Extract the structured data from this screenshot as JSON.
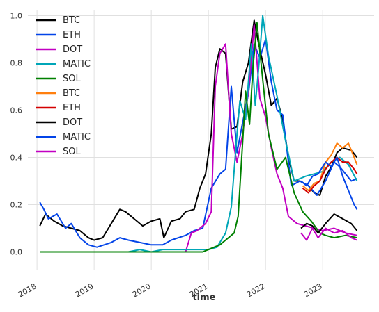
{
  "chart_data": {
    "type": "line",
    "xlabel": "time",
    "ylabel": "",
    "xlim": [
      2017.84,
      2023.9
    ],
    "ylim": [
      -0.075,
      1.025
    ],
    "x_ticks": [
      {
        "value": 2018,
        "label": "2018"
      },
      {
        "value": 2019,
        "label": "2019"
      },
      {
        "value": 2020,
        "label": "2020"
      },
      {
        "value": 2021,
        "label": "2021"
      },
      {
        "value": 2022,
        "label": "2022"
      },
      {
        "value": 2023,
        "label": "2023"
      }
    ],
    "y_ticks": [
      {
        "value": 0.0,
        "label": "0.0"
      },
      {
        "value": 0.2,
        "label": "0.2"
      },
      {
        "value": 0.4,
        "label": "0.4"
      },
      {
        "value": 0.6,
        "label": "0.6"
      },
      {
        "value": 0.8,
        "label": "0.8"
      },
      {
        "value": 1.0,
        "label": "1.0"
      }
    ],
    "grid": true,
    "legend_position": "top-left",
    "series": [
      {
        "name": "BTC",
        "color": "#000000",
        "x": [
          2018.05,
          2018.15,
          2018.3,
          2018.45,
          2018.6,
          2018.75,
          2018.9,
          2019.0,
          2019.15,
          2019.3,
          2019.45,
          2019.55,
          2019.7,
          2019.85,
          2020.0,
          2020.15,
          2020.22,
          2020.35,
          2020.5,
          2020.6,
          2020.75,
          2020.85,
          2020.95,
          2021.05,
          2021.12,
          2021.2,
          2021.3,
          2021.4,
          2021.5,
          2021.6,
          2021.7,
          2021.8,
          2021.88,
          2022.0,
          2022.1,
          2022.2,
          2022.3,
          2022.4,
          2022.5,
          2022.6,
          2022.75,
          2022.85,
          2022.95,
          2023.05,
          2023.15,
          2023.25,
          2023.35,
          2023.5,
          2023.6
        ],
        "y": [
          0.11,
          0.16,
          0.13,
          0.11,
          0.1,
          0.09,
          0.06,
          0.05,
          0.06,
          0.12,
          0.18,
          0.17,
          0.14,
          0.11,
          0.13,
          0.14,
          0.06,
          0.13,
          0.14,
          0.17,
          0.18,
          0.27,
          0.33,
          0.5,
          0.78,
          0.86,
          0.84,
          0.52,
          0.53,
          0.72,
          0.8,
          0.98,
          0.88,
          0.75,
          0.62,
          0.65,
          0.56,
          0.4,
          0.3,
          0.3,
          0.28,
          0.25,
          0.24,
          0.32,
          0.36,
          0.42,
          0.44,
          0.43,
          0.4
        ]
      },
      {
        "name": "ETH",
        "color": "#0344e8",
        "x": [
          2018.05,
          2018.12,
          2018.2,
          2018.35,
          2018.5,
          2018.6,
          2018.75,
          2018.9,
          2019.05,
          2019.3,
          2019.45,
          2019.6,
          2019.8,
          2020.0,
          2020.2,
          2020.35,
          2020.6,
          2020.75,
          2020.9,
          2021.05,
          2021.2,
          2021.3,
          2021.4,
          2021.5,
          2021.6,
          2021.7,
          2021.8,
          2021.9,
          2022.0,
          2022.1,
          2022.2,
          2022.3,
          2022.45,
          2022.6,
          2022.75,
          2022.9,
          2023.05,
          2023.2,
          2023.3,
          2023.4,
          2023.5,
          2023.6
        ],
        "y": [
          0.21,
          0.18,
          0.14,
          0.16,
          0.1,
          0.12,
          0.06,
          0.03,
          0.02,
          0.04,
          0.06,
          0.05,
          0.04,
          0.03,
          0.03,
          0.05,
          0.07,
          0.09,
          0.1,
          0.27,
          0.33,
          0.35,
          0.7,
          0.42,
          0.55,
          0.67,
          0.88,
          0.82,
          0.9,
          0.72,
          0.6,
          0.58,
          0.28,
          0.3,
          0.28,
          0.24,
          0.3,
          0.38,
          0.36,
          0.33,
          0.3,
          0.31
        ]
      },
      {
        "name": "DOT",
        "color": "#c200c2",
        "x": [
          2020.6,
          2020.7,
          2020.8,
          2020.95,
          2021.05,
          2021.12,
          2021.2,
          2021.3,
          2021.4,
          2021.5,
          2021.6,
          2021.7,
          2021.8,
          2021.9,
          2022.0,
          2022.1,
          2022.2,
          2022.3,
          2022.4,
          2022.55,
          2022.7,
          2022.85,
          2023.0,
          2023.2,
          2023.4,
          2023.6
        ],
        "y": [
          0.0,
          0.08,
          0.09,
          0.12,
          0.17,
          0.7,
          0.84,
          0.88,
          0.5,
          0.38,
          0.5,
          0.68,
          0.96,
          0.65,
          0.57,
          0.44,
          0.33,
          0.27,
          0.15,
          0.12,
          0.11,
          0.1,
          0.09,
          0.1,
          0.08,
          0.07
        ]
      },
      {
        "name": "MATIC",
        "color": "#00a6b8",
        "x": [
          2019.6,
          2019.8,
          2020.0,
          2020.2,
          2020.4,
          2020.6,
          2020.8,
          2021.0,
          2021.15,
          2021.3,
          2021.4,
          2021.5,
          2021.55,
          2021.65,
          2021.75,
          2021.82,
          2021.88,
          2021.95,
          2022.05,
          2022.2,
          2022.35,
          2022.5,
          2022.7,
          2022.85,
          2023.0,
          2023.15,
          2023.3,
          2023.45,
          2023.6
        ],
        "y": [
          0.0,
          0.01,
          0.0,
          0.01,
          0.01,
          0.01,
          0.01,
          0.01,
          0.02,
          0.08,
          0.19,
          0.5,
          0.64,
          0.56,
          0.88,
          0.62,
          0.78,
          1.0,
          0.83,
          0.66,
          0.47,
          0.3,
          0.32,
          0.33,
          0.34,
          0.38,
          0.4,
          0.37,
          0.3
        ]
      },
      {
        "name": "SOL",
        "color": "#008000",
        "x": [
          2018.05,
          2018.5,
          2019.0,
          2019.5,
          2020.0,
          2020.5,
          2020.9,
          2021.0,
          2021.2,
          2021.3,
          2021.45,
          2021.52,
          2021.6,
          2021.65,
          2021.72,
          2021.78,
          2021.85,
          2021.95,
          2022.05,
          2022.2,
          2022.35,
          2022.5,
          2022.65,
          2022.8,
          2022.95,
          2023.05,
          2023.2,
          2023.4,
          2023.6
        ],
        "y": [
          0.0,
          0.0,
          0.0,
          0.0,
          0.0,
          0.0,
          0.0,
          0.01,
          0.03,
          0.05,
          0.08,
          0.15,
          0.47,
          0.68,
          0.54,
          0.78,
          0.97,
          0.73,
          0.5,
          0.35,
          0.4,
          0.25,
          0.17,
          0.13,
          0.08,
          0.07,
          0.06,
          0.07,
          0.06
        ]
      },
      {
        "name": "BTC",
        "color": "#ff7f0e",
        "x": [
          2022.65,
          2022.75,
          2022.85,
          2022.95,
          2023.05,
          2023.15,
          2023.25,
          2023.35,
          2023.45,
          2023.55,
          2023.6
        ],
        "y": [
          0.28,
          0.26,
          0.29,
          0.3,
          0.38,
          0.41,
          0.46,
          0.44,
          0.46,
          0.4,
          0.37
        ]
      },
      {
        "name": "ETH",
        "color": "#d40000",
        "x": [
          2022.65,
          2022.75,
          2022.85,
          2022.95,
          2023.05,
          2023.15,
          2023.25,
          2023.35,
          2023.45,
          2023.55,
          2023.6
        ],
        "y": [
          0.27,
          0.25,
          0.28,
          0.3,
          0.35,
          0.38,
          0.4,
          0.38,
          0.38,
          0.35,
          0.33
        ]
      },
      {
        "name": "DOT",
        "color": "#000000",
        "x": [
          2022.62,
          2022.72,
          2022.82,
          2022.92,
          2023.05,
          2023.2,
          2023.35,
          2023.5,
          2023.6
        ],
        "y": [
          0.1,
          0.12,
          0.11,
          0.08,
          0.12,
          0.16,
          0.14,
          0.12,
          0.09
        ]
      },
      {
        "name": "MATIC",
        "color": "#0344e8",
        "x": [
          2022.62,
          2022.72,
          2022.82,
          2022.92,
          2023.05,
          2023.15,
          2023.25,
          2023.35,
          2023.45,
          2023.55,
          2023.6
        ],
        "y": [
          0.3,
          0.28,
          0.32,
          0.33,
          0.38,
          0.36,
          0.4,
          0.32,
          0.26,
          0.2,
          0.18
        ]
      },
      {
        "name": "SOL",
        "color": "#c200c2",
        "x": [
          2022.62,
          2022.72,
          2022.82,
          2022.92,
          2023.05,
          2023.2,
          2023.35,
          2023.5,
          2023.6
        ],
        "y": [
          0.08,
          0.05,
          0.1,
          0.06,
          0.1,
          0.08,
          0.09,
          0.06,
          0.05
        ]
      }
    ]
  }
}
